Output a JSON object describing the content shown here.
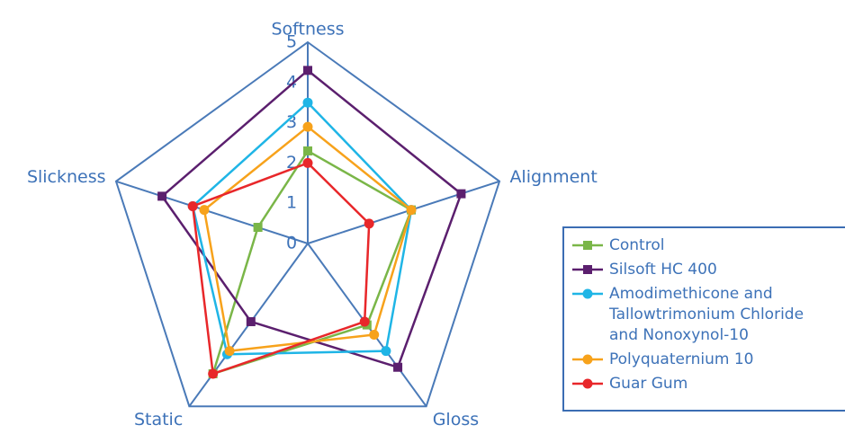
{
  "chart_data": {
    "type": "radar",
    "categories": [
      "Softness",
      "Alignment",
      "Gloss",
      "Static",
      "Slickness"
    ],
    "rlim": [
      0,
      5
    ],
    "rticks": [
      0,
      1,
      2,
      3,
      4,
      5
    ],
    "axis_color": "#4a7ab8",
    "series": [
      {
        "name": "Control",
        "color": "#7ab648",
        "marker": "square",
        "values": [
          2.3,
          2.7,
          2.5,
          4.0,
          1.3
        ]
      },
      {
        "name": "Silsoft HC 400",
        "color": "#5b1f6e",
        "marker": "square",
        "values": [
          4.3,
          4.0,
          3.8,
          2.4,
          3.8
        ]
      },
      {
        "name": "Amodimethicone and Tallowtrimonium Chloride and Nonoxynol-10",
        "color": "#1fb5e6",
        "marker": "circle",
        "values": [
          3.5,
          2.7,
          3.3,
          3.4,
          3.0
        ]
      },
      {
        "name": "Polyquaternium 10",
        "color": "#f7a21b",
        "marker": "circle",
        "values": [
          2.9,
          2.7,
          2.8,
          3.3,
          2.7
        ]
      },
      {
        "name": "Guar Gum",
        "color": "#e8272a",
        "marker": "circle",
        "values": [
          2.0,
          1.6,
          2.4,
          4.0,
          3.0
        ]
      }
    ]
  }
}
